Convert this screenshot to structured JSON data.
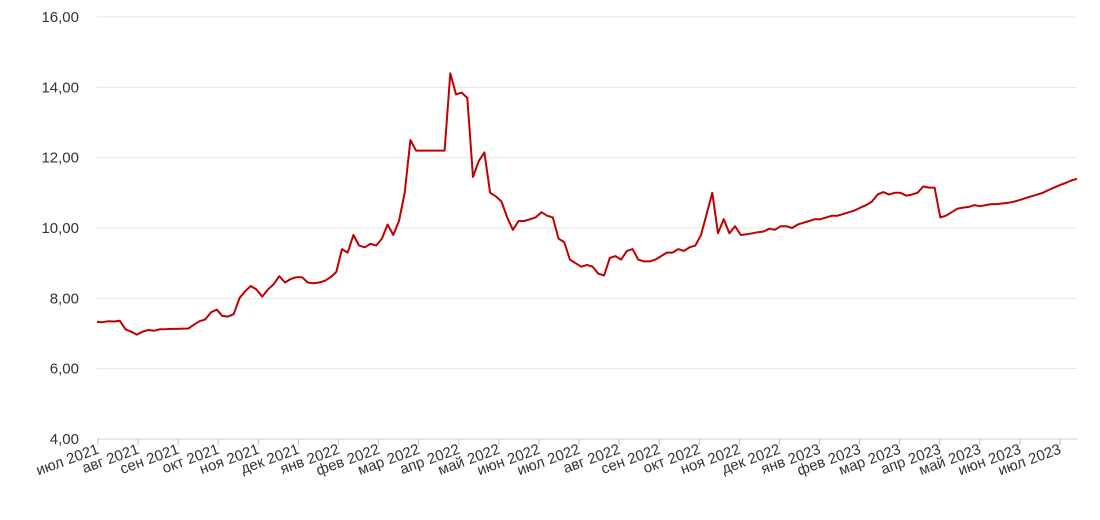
{
  "chart_data": {
    "type": "line",
    "title": "",
    "xlabel": "",
    "ylabel": "",
    "ylim": [
      4,
      16
    ],
    "yticks": [
      "4,00",
      "6,00",
      "8,00",
      "10,00",
      "12,00",
      "14,00",
      "16,00"
    ],
    "xticks": [
      "июл 2021",
      "авг 2021",
      "сен 2021",
      "окт 2021",
      "ноя 2021",
      "дек 2021",
      "янв 2022",
      "фев 2022",
      "мар 2022",
      "апр 2022",
      "май 2022",
      "июн 2022",
      "июл 2022",
      "авг 2022",
      "сен 2022",
      "окт 2022",
      "ноя 2022",
      "дек 2022",
      "янв 2023",
      "фев 2023",
      "мар 2023",
      "апр 2023",
      "май 2023",
      "июн 2023",
      "июл 2023"
    ],
    "grid": true,
    "line_color": "#c00000",
    "series": [
      {
        "values": [
          7.33,
          7.32,
          7.35,
          7.34,
          7.36,
          7.12,
          7.05,
          6.97,
          7.05,
          7.1,
          7.08,
          7.12,
          7.12,
          7.13,
          7.13,
          7.14,
          7.14,
          7.25,
          7.35,
          7.4,
          7.6,
          7.68,
          7.5,
          7.48,
          7.55,
          8.0,
          8.2,
          8.35,
          8.25,
          8.05,
          8.25,
          8.4,
          8.63,
          8.45,
          8.55,
          8.6,
          8.6,
          8.45,
          8.43,
          8.45,
          8.5,
          8.6,
          8.75,
          9.4,
          9.3,
          9.8,
          9.5,
          9.45,
          9.55,
          9.5,
          9.7,
          10.1,
          9.8,
          10.2,
          11.0,
          12.5,
          12.2,
          12.2,
          12.2,
          12.2,
          12.2,
          12.2,
          14.4,
          13.8,
          13.85,
          13.7,
          11.45,
          11.9,
          12.15,
          11.0,
          10.9,
          10.75,
          10.3,
          9.95,
          10.2,
          10.2,
          10.25,
          10.3,
          10.45,
          10.35,
          10.3,
          9.7,
          9.6,
          9.1,
          9.0,
          8.9,
          8.95,
          8.9,
          8.7,
          8.65,
          9.15,
          9.2,
          9.1,
          9.35,
          9.4,
          9.1,
          9.05,
          9.05,
          9.1,
          9.2,
          9.3,
          9.3,
          9.4,
          9.35,
          9.45,
          9.5,
          9.8,
          10.4,
          11.0,
          9.85,
          10.25,
          9.85,
          10.05,
          9.8,
          9.82,
          9.85,
          9.88,
          9.9,
          9.98,
          9.95,
          10.05,
          10.05,
          10.0,
          10.1,
          10.15,
          10.2,
          10.25,
          10.25,
          10.3,
          10.35,
          10.35,
          10.4,
          10.45,
          10.5,
          10.58,
          10.65,
          10.75,
          10.95,
          11.02,
          10.95,
          11.0,
          11.0,
          10.92,
          10.95,
          11.0,
          11.18,
          11.15,
          11.15,
          10.3,
          10.35,
          10.45,
          10.55,
          10.58,
          10.6,
          10.65,
          10.62,
          10.65,
          10.68,
          10.68,
          10.7,
          10.72,
          10.75,
          10.8,
          10.85,
          10.9,
          10.95,
          11.0,
          11.08,
          11.15,
          11.22,
          11.28,
          11.35,
          11.4
        ]
      }
    ]
  }
}
